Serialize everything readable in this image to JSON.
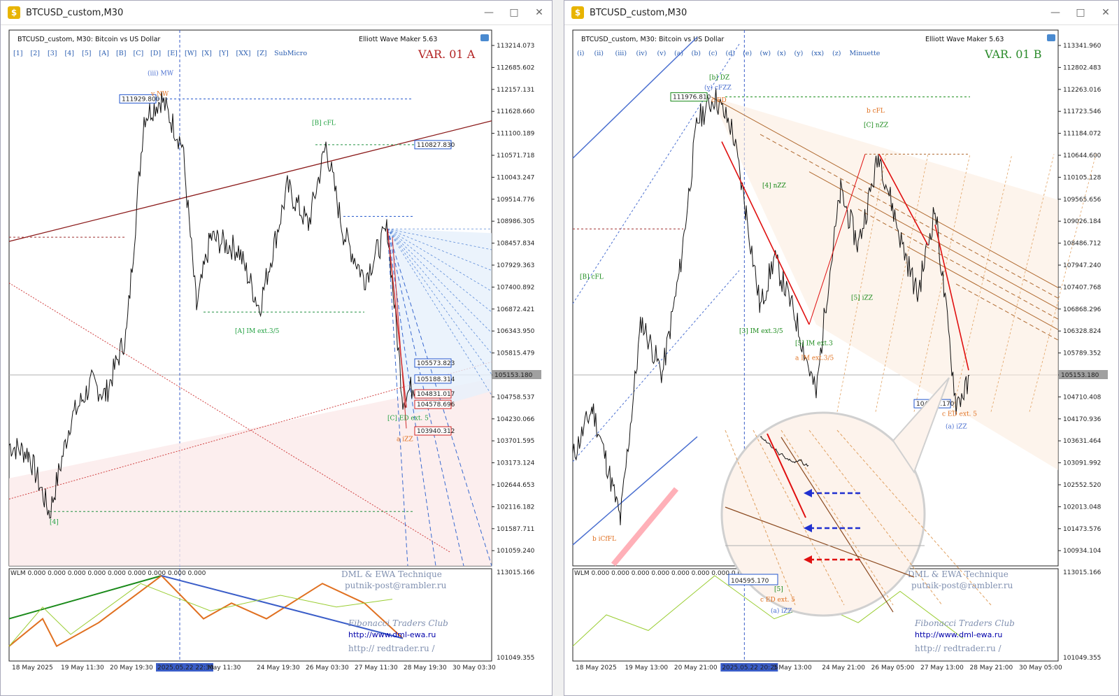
{
  "windows": [
    {
      "id": "A",
      "title": "BTCUSD_custom,M30",
      "header_text": "BTCUSD_custom, M30:  Bitcoin vs US Dollar",
      "plugin": "Elliott Wave Maker 5.63",
      "variant": "VAR. 01 A",
      "variant_color": "#b22222",
      "toolbar": [
        "[1]",
        "[2]",
        "[3]",
        "[4]",
        "[5]",
        "[A]",
        "[B]",
        "[C]",
        "[D]",
        "[E]",
        "[W]",
        "[X]",
        "[Y]",
        "[XX]",
        "[Z]",
        "SubMicro"
      ],
      "price_ticks": [
        "113214.073",
        "112685.602",
        "112157.131",
        "111628.660",
        "111100.189",
        "110571.718",
        "110043.247",
        "109514.776",
        "108986.305",
        "108457.834",
        "107929.363",
        "107400.892",
        "106872.421",
        "106343.950",
        "105815.479",
        "105287.008",
        "104758.537",
        "104230.066",
        "103701.595",
        "103173.124",
        "102644.653",
        "102116.182",
        "101587.711",
        "101059.240"
      ],
      "current_price": "105153.180",
      "price_boxes": [
        {
          "text": "111929.800",
          "color": "#2255cc"
        },
        {
          "text": "110827.830",
          "color": "#2255cc"
        },
        {
          "text": "105573.823",
          "color": "#2255cc"
        },
        {
          "text": "105188.314",
          "color": "#2255cc"
        },
        {
          "text": "104831.017",
          "color": "#d02020"
        },
        {
          "text": "104578.696",
          "color": "#d02020"
        },
        {
          "text": "103940.312",
          "color": "#d02020"
        }
      ],
      "wave_labels": [
        {
          "text": "(iii) MW",
          "color": "#4a6fd0"
        },
        {
          "text": "v NW",
          "color": "#e07020"
        },
        {
          "text": "[B] cFL",
          "color": "#20a040"
        },
        {
          "text": "[A] IM ext.3/5",
          "color": "#20a040"
        },
        {
          "text": "[C] ED ext. 5",
          "color": "#20a040"
        },
        {
          "text": "a iZZ",
          "color": "#e07020"
        },
        {
          "text": "[4]",
          "color": "#20a040"
        }
      ],
      "time_ticks": [
        "18 May 2025",
        "19 May 11:30",
        "20 May 19:30",
        "2025.05.22 22:30",
        "May 11:30",
        "24 May 19:30",
        "26 May 03:30",
        "27 May 11:30",
        "28 May 19:30",
        "30 May 03:30"
      ],
      "sub_header": "WLM 0.000 0.000 0.000 0.000 0.000 0.000 0.000 0.000 0.000",
      "sub_ticks": [
        "113015.166",
        "101049.355"
      ],
      "credits": {
        "line1": "DML & EWA Technique",
        "line2": "putnik-post@rambler.ru",
        "line3": "Fibonacci   Traders   Club",
        "link1": "http://www.dml-ewa.ru",
        "link2": "http://  redtrader.ru  /"
      }
    },
    {
      "id": "B",
      "title": "BTCUSD_custom,M30",
      "header_text": "BTCUSD_custom, M30:  Bitcoin vs US Dollar",
      "plugin": "Elliott Wave Maker 5.63",
      "variant": "VAR. 01 B",
      "variant_color": "#2a8a2a",
      "toolbar": [
        "(i)",
        "(ii)",
        "(iii)",
        "(iv)",
        "(v)",
        "(a)",
        "(b)",
        "(c)",
        "(d)",
        "(e)",
        "(w)",
        "(x)",
        "(y)",
        "(xx)",
        "(z)",
        "Minuette"
      ],
      "price_ticks": [
        "113341.960",
        "112802.483",
        "112263.016",
        "111723.546",
        "111184.072",
        "110644.600",
        "110105.128",
        "109565.656",
        "109026.184",
        "108486.712",
        "107947.240",
        "107407.768",
        "106868.296",
        "106328.824",
        "105789.352",
        "105249.880",
        "104710.408",
        "104170.936",
        "103631.464",
        "103091.992",
        "102552.520",
        "102013.048",
        "101473.576",
        "100934.104"
      ],
      "current_price": "105153.180",
      "price_boxes": [
        {
          "text": "111976.810",
          "color": "#1a8a1a"
        },
        {
          "text": "104595.170",
          "color": "#2255cc"
        }
      ],
      "wave_labels": [
        {
          "text": "[b] DZ",
          "color": "#1a8a1a"
        },
        {
          "text": "(y) cFZZ",
          "color": "#4a6fd0"
        },
        {
          "text": "c ED",
          "color": "#e07020"
        },
        {
          "text": "b cFL",
          "color": "#e07020"
        },
        {
          "text": "[C] nZZ",
          "color": "#1a8a1a"
        },
        {
          "text": "[4] nZZ",
          "color": "#1a8a1a"
        },
        {
          "text": "[B] cFL",
          "color": "#1a8a1a"
        },
        {
          "text": "b iCfFL",
          "color": "#e07020"
        },
        {
          "text": "[3] IM ext.3/5",
          "color": "#1a8a1a"
        },
        {
          "text": "[5] IM ext.3",
          "color": "#1a8a1a"
        },
        {
          "text": "a IM ext.3/5",
          "color": "#e07020"
        },
        {
          "text": "c ED ext. 5",
          "color": "#e07020"
        },
        {
          "text": "(a) iZZ",
          "color": "#4a6fd0"
        },
        {
          "text": "[5] iZZ",
          "color": "#1a8a1a"
        }
      ],
      "time_ticks": [
        "18 May 2025",
        "19 May 13:00",
        "20 May 21:00",
        "2025.05.22 20:25",
        "3 May 13:00",
        "24 May 21:00",
        "26 May 05:00",
        "27 May 13:00",
        "28 May 21:00",
        "30 May 05:00"
      ],
      "sub_header": "WLM 0.000 0.000 0.000 0.000 0.000 0.000 0.000 0.000 0.000",
      "sub_ticks": [
        "113015.166",
        "101049.355"
      ],
      "credits": {
        "line1": "DML & EWA Technique",
        "line2": "putnik-post@rambler.ru",
        "line3": "Fibonacci   Traders   Club",
        "link1": "http://www.dml-ewa.ru",
        "link2": "http://  redtrader.ru  /"
      },
      "zoom": {
        "price": "104595.170",
        "label1": "[5]",
        "label2": "c ED ext. 5",
        "label3": "(a) iZZ"
      }
    }
  ],
  "chart_data": {
    "type": "line",
    "series": [
      {
        "name": "",
        "values": [
          103600,
          101800,
          105500,
          106900,
          111929,
          110200,
          109000,
          106800,
          109800,
          110827,
          108700,
          106900,
          107800,
          108800,
          104600,
          105150
        ]
      }
    ],
    "x": [
      "18 May 2025",
      "19 May 11:30",
      "20 May 19:30",
      "2025.05.22 22:30",
      "May 11:30",
      "24 May 19:30",
      "26 May 03:30",
      "27 May 11:30",
      "28 May 19:30",
      "30 May 03:30",
      "",
      "",
      "",
      "",
      "",
      ""
    ]
  }
}
